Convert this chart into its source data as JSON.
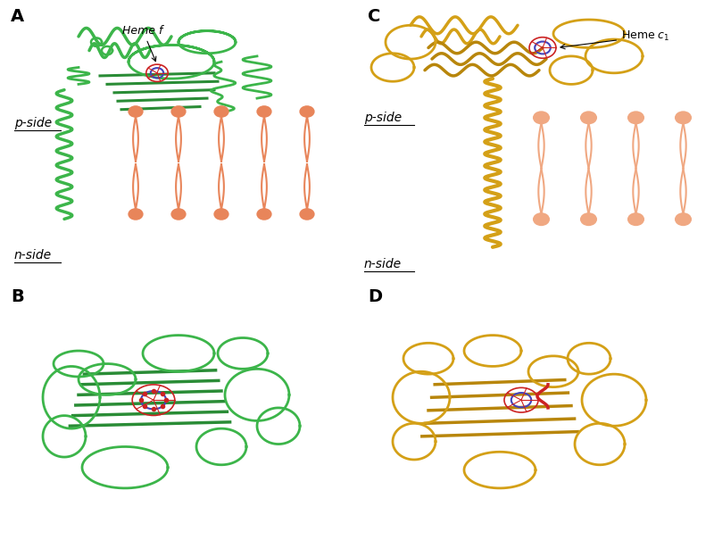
{
  "background_color": "#ffffff",
  "panel_labels": [
    "A",
    "B",
    "C",
    "D"
  ],
  "panel_label_fontsize": 14,
  "panel_label_weight": "bold",
  "green_color": "#3cb54a",
  "green_dark_color": "#2a8c36",
  "yellow_color": "#d4a017",
  "yellow_dark_color": "#b8860b",
  "orange_color": "#e8855a",
  "orange_light": "#f0a882",
  "red_color": "#cc2222",
  "blue_color": "#4444bb",
  "heme_f_label": "Heme f",
  "heme_c1_label": "Heme c₁",
  "p_side_label": "p-side",
  "n_side_label": "n-side",
  "label_fontsize": 10,
  "annotation_fontsize": 9
}
